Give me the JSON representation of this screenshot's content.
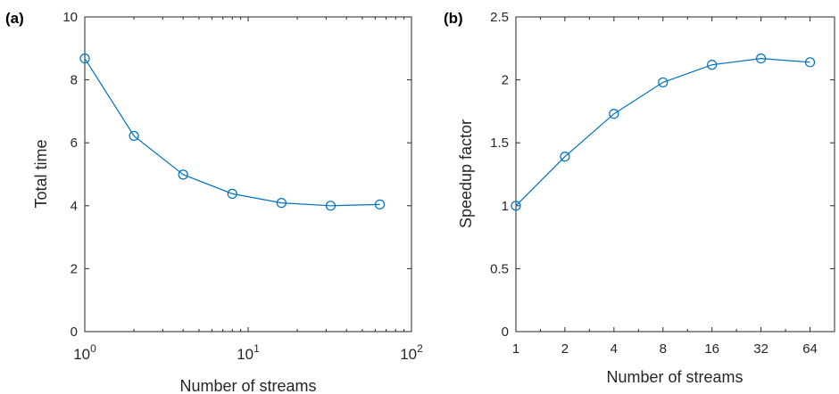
{
  "chart_data": [
    {
      "panel_label": "(a)",
      "type": "line",
      "xscale": "log",
      "xlabel": "Number of streams",
      "ylabel": "Total time",
      "xlim": [
        1,
        100
      ],
      "ylim": [
        0,
        10
      ],
      "x_ticks": [
        1,
        10,
        100
      ],
      "x_tick_labels": [
        {
          "base": "10",
          "exp": "0"
        },
        {
          "base": "10",
          "exp": "1"
        },
        {
          "base": "10",
          "exp": "2"
        }
      ],
      "y_ticks": [
        0,
        2,
        4,
        6,
        8,
        10
      ],
      "y_tick_labels": [
        "0",
        "2",
        "4",
        "6",
        "8",
        "10"
      ],
      "grid": false,
      "series": [
        {
          "color": "#0072BD",
          "marker": "circle",
          "x": [
            1,
            2,
            4,
            8,
            16,
            32,
            64
          ],
          "y": [
            8.68,
            6.22,
            4.99,
            4.38,
            4.09,
            4.0,
            4.04
          ]
        }
      ]
    },
    {
      "panel_label": "(b)",
      "type": "line",
      "xscale": "log2",
      "xlabel": "Number of streams",
      "ylabel": "Speedup factor",
      "xlim": [
        1,
        90.5
      ],
      "ylim": [
        0,
        2.5
      ],
      "x_ticks": [
        1,
        2,
        4,
        8,
        16,
        32,
        64
      ],
      "x_tick_labels": [
        "1",
        "2",
        "4",
        "8",
        "16",
        "32",
        "64"
      ],
      "y_ticks": [
        0,
        0.5,
        1,
        1.5,
        2,
        2.5
      ],
      "y_tick_labels": [
        "0",
        "0.5",
        "1",
        "1.5",
        "2",
        "2.5"
      ],
      "grid": false,
      "series": [
        {
          "color": "#0072BD",
          "marker": "circle",
          "x": [
            1,
            2,
            4,
            8,
            16,
            32,
            64
          ],
          "y": [
            1.0,
            1.39,
            1.73,
            1.98,
            2.12,
            2.17,
            2.14
          ]
        }
      ]
    }
  ]
}
